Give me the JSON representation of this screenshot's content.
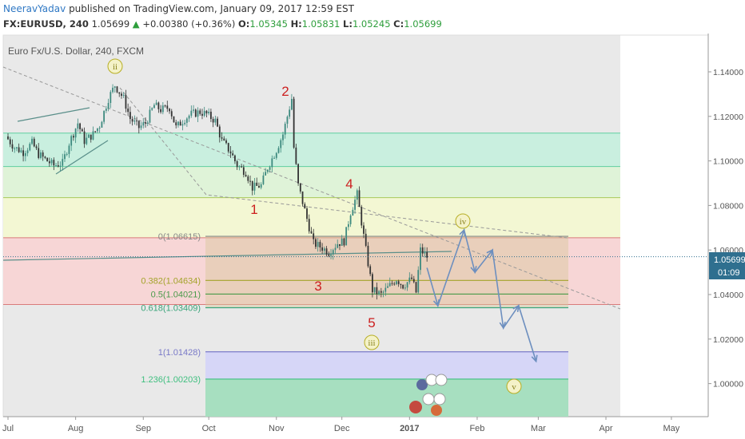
{
  "header": {
    "author": "NeeravYadav",
    "published": "published on TradingView.com, January 09, 2017 12:59 EST",
    "symbol": "FX:EURUSD, 240",
    "last": "1.05699",
    "arrow": "▲",
    "change": "+0.00380 (+0.36%)",
    "o_label": "O:",
    "o": "1.05345",
    "h_label": "H:",
    "h": "1.05831",
    "l_label": "L:",
    "l": "1.05245",
    "c_label": "C:",
    "c": "1.05699"
  },
  "chart_data": {
    "type": "line",
    "title": "Euro Fx/U.S. Dollar, 240, FXCM",
    "x_ticks": [
      "Jul",
      "Aug",
      "Sep",
      "Oct",
      "Nov",
      "Dec",
      "2017",
      "Feb",
      "Mar",
      "Apr",
      "May"
    ],
    "y_ticks": [
      "1.14000",
      "1.12000",
      "1.10000",
      "1.08000",
      "1.06000",
      "1.04000",
      "1.02000",
      "1.00000"
    ],
    "ylim": [
      0.9875,
      1.1525
    ],
    "current_price": "1.05699",
    "countdown": "01:09",
    "series": [
      {
        "x": [
          "2016-06-30",
          "2016-07-04",
          "2016-07-08",
          "2016-07-12",
          "2016-07-15",
          "2016-07-19",
          "2016-07-22",
          "2016-07-26",
          "2016-07-29",
          "2016-08-02",
          "2016-08-05",
          "2016-08-09",
          "2016-08-12",
          "2016-08-16",
          "2016-08-19",
          "2016-08-23",
          "2016-08-26",
          "2016-08-30",
          "2016-09-02",
          "2016-09-06",
          "2016-09-09",
          "2016-09-13",
          "2016-09-16",
          "2016-09-20",
          "2016-09-23",
          "2016-09-27",
          "2016-09-30",
          "2016-10-04",
          "2016-10-07",
          "2016-10-11",
          "2016-10-14",
          "2016-10-18",
          "2016-10-21",
          "2016-10-25",
          "2016-10-28",
          "2016-11-01",
          "2016-11-04",
          "2016-11-08",
          "2016-11-09",
          "2016-11-11",
          "2016-11-15",
          "2016-11-18",
          "2016-11-22",
          "2016-11-25",
          "2016-11-29",
          "2016-12-02",
          "2016-12-05",
          "2016-12-08",
          "2016-12-12",
          "2016-12-15",
          "2016-12-19",
          "2016-12-22",
          "2016-12-26",
          "2016-12-29",
          "2017-01-02",
          "2017-01-04",
          "2017-01-06",
          "2017-01-09"
        ],
        "values": [
          1.111,
          1.106,
          1.104,
          1.108,
          1.103,
          1.1,
          1.098,
          1.099,
          1.108,
          1.117,
          1.109,
          1.112,
          1.116,
          1.128,
          1.134,
          1.128,
          1.119,
          1.115,
          1.117,
          1.125,
          1.123,
          1.124,
          1.115,
          1.119,
          1.121,
          1.122,
          1.121,
          1.118,
          1.109,
          1.104,
          1.098,
          1.095,
          1.088,
          1.089,
          1.097,
          1.105,
          1.112,
          1.128,
          1.106,
          1.089,
          1.074,
          1.063,
          1.061,
          1.059,
          1.063,
          1.064,
          1.077,
          1.085,
          1.06,
          1.042,
          1.04,
          1.043,
          1.047,
          1.044,
          1.047,
          1.041,
          1.06,
          1.05699
        ]
      }
    ],
    "wave_labels": [
      "ii",
      "1",
      "2",
      "3",
      "4",
      "5",
      "iii",
      "iv",
      "v"
    ],
    "fib_levels": [
      {
        "label": "0(1.06615)",
        "value": 1.06615
      },
      {
        "label": "0.382(1.04634)",
        "value": 1.04634
      },
      {
        "label": "0.5(1.04021)",
        "value": 1.04021
      },
      {
        "label": "0.618(1.03409)",
        "value": 1.03409
      },
      {
        "label": "1(1.01428)",
        "value": 1.01428
      },
      {
        "label": "1.236(1.00203)",
        "value": 1.00203
      }
    ],
    "zone_lines": [
      1.1125,
      1.0975,
      1.0835,
      1.0655,
      1.0355
    ],
    "projection": [
      {
        "x": "2017-01-09",
        "y": 1.052
      },
      {
        "x": "2017-01-14",
        "y": 1.035
      },
      {
        "x": "2017-01-26",
        "y": 1.069
      },
      {
        "x": "2017-01-31",
        "y": 1.05
      },
      {
        "x": "2017-02-08",
        "y": 1.06
      },
      {
        "x": "2017-02-13",
        "y": 1.025
      },
      {
        "x": "2017-02-20",
        "y": 1.035
      },
      {
        "x": "2017-02-28",
        "y": 1.01
      }
    ],
    "legend": "none",
    "grid": false
  },
  "colors": {
    "zone_green": "#c9efdf",
    "zone_yellow": "#f3f7d3",
    "zone_red": "#f7d6d6",
    "fib_box": "#d8c79b",
    "fib_purple": "#d6d6f7",
    "fib_teal": "#a7dfc0",
    "candle_up": "#3d8a7f",
    "candle_down": "#333333",
    "wave_red": "#cc1f1f",
    "wave_green": "#b7ae25",
    "projection": "#6d8fbf",
    "price_tag": "#2f6f8f"
  }
}
